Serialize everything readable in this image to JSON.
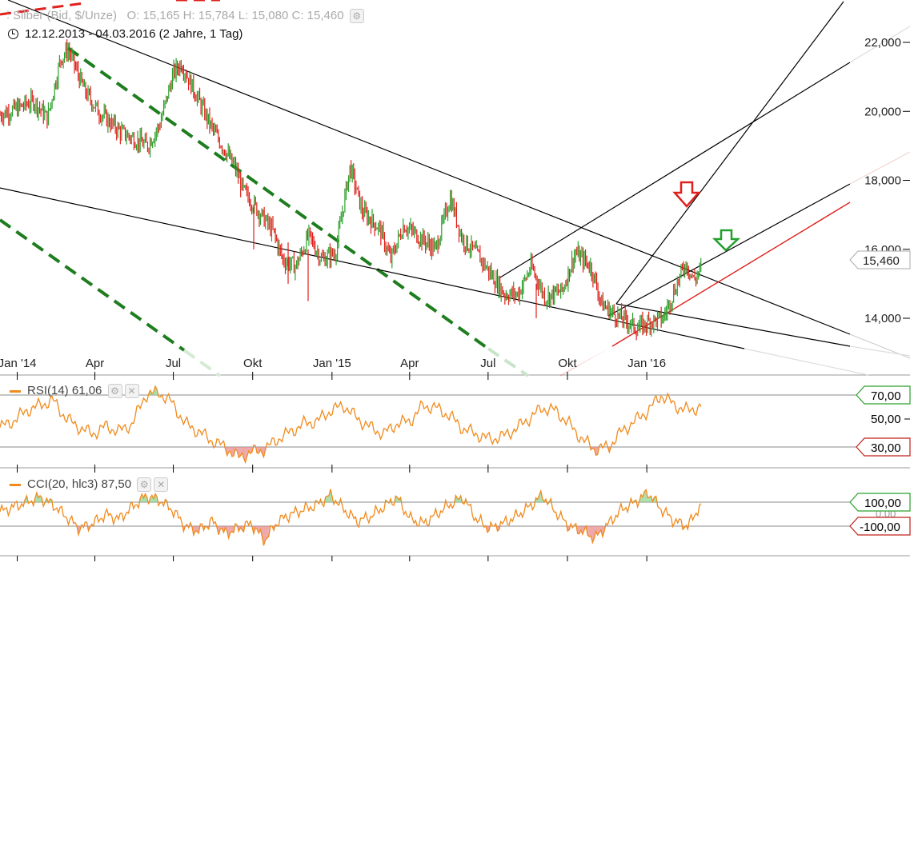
{
  "header": {
    "instrument": "Silber (Bid, $/Unze)",
    "ohlc": "O: 15,165   H: 15,784   L: 15,080   C: 15,460",
    "period": "12.12.2013 - 04.03.2016 (2 Jahre, 1 Tag)"
  },
  "indicators": {
    "rsi_title": "RSI(14)  61,06",
    "cci_title": "CCI(20, hlc3)  87,50"
  },
  "colors": {
    "up": "#2ca02c",
    "down": "#e0201b",
    "indicator": "#f08a1c",
    "trend": "#000000",
    "support": "#e0201b",
    "channel": "#1e7d1e"
  },
  "chart_data": [
    {
      "type": "candlestick",
      "title": "Silber (Bid, $/Unze)",
      "x_ticks": [
        "Jan '14",
        "Apr",
        "Jul",
        "Okt",
        "Jan '15",
        "Apr",
        "Jul",
        "Okt",
        "Jan '16"
      ],
      "y_ticks": [
        "14,000",
        "16,000",
        "18,000",
        "20,000",
        "22,000"
      ],
      "ylim": [
        13.0,
        23.0
      ],
      "last_price_label": "15,460",
      "close_path": [
        [
          "2013-12-12",
          19.9
        ],
        [
          "2014-01-02",
          20.1
        ],
        [
          "2014-01-20",
          20.3
        ],
        [
          "2014-02-05",
          19.8
        ],
        [
          "2014-02-20",
          21.5
        ],
        [
          "2014-03-01",
          21.8
        ],
        [
          "2014-03-20",
          20.6
        ],
        [
          "2014-04-05",
          20.0
        ],
        [
          "2014-05-01",
          19.4
        ],
        [
          "2014-06-01",
          19.0
        ],
        [
          "2014-06-15",
          19.6
        ],
        [
          "2014-07-01",
          21.1
        ],
        [
          "2014-07-10",
          21.4
        ],
        [
          "2014-07-25",
          20.6
        ],
        [
          "2014-08-15",
          19.5
        ],
        [
          "2014-09-10",
          18.4
        ],
        [
          "2014-09-20",
          17.7
        ],
        [
          "2014-10-05",
          17.2
        ],
        [
          "2014-10-25",
          16.5
        ],
        [
          "2014-11-05",
          15.7
        ],
        [
          "2014-11-20",
          15.5
        ],
        [
          "2014-12-05",
          16.4
        ],
        [
          "2014-12-20",
          15.7
        ],
        [
          "2015-01-05",
          15.9
        ],
        [
          "2015-01-22",
          18.4
        ],
        [
          "2015-02-05",
          17.1
        ],
        [
          "2015-02-25",
          16.6
        ],
        [
          "2015-03-10",
          15.7
        ],
        [
          "2015-03-25",
          16.7
        ],
        [
          "2015-04-10",
          16.4
        ],
        [
          "2015-05-01",
          16.0
        ],
        [
          "2015-05-18",
          17.5
        ],
        [
          "2015-06-01",
          16.3
        ],
        [
          "2015-06-20",
          15.8
        ],
        [
          "2015-07-01",
          15.4
        ],
        [
          "2015-07-20",
          14.7
        ],
        [
          "2015-08-05",
          14.7
        ],
        [
          "2015-08-20",
          15.5
        ],
        [
          "2015-09-05",
          14.6
        ],
        [
          "2015-09-25",
          14.8
        ],
        [
          "2015-10-10",
          15.9
        ],
        [
          "2015-10-28",
          15.5
        ],
        [
          "2015-11-10",
          14.4
        ],
        [
          "2015-11-25",
          14.1
        ],
        [
          "2015-12-10",
          13.9
        ],
        [
          "2015-12-20",
          13.7
        ],
        [
          "2016-01-05",
          13.9
        ],
        [
          "2016-01-20",
          14.0
        ],
        [
          "2016-02-05",
          15.0
        ],
        [
          "2016-02-15",
          15.6
        ],
        [
          "2016-02-25",
          15.1
        ],
        [
          "2016-03-04",
          15.46
        ]
      ],
      "annotations": [
        "red down arrow near 16,800 (Feb 2016)",
        "green down arrow near 15,900 (Mar 2016)"
      ]
    },
    {
      "type": "line",
      "title": "RSI(14)  61,06",
      "levels": [
        "70,00",
        "50,00",
        "30,00"
      ],
      "ylim": [
        15,
        85
      ],
      "series": [
        {
          "values": [
            45,
            50,
            58,
            62,
            66,
            52,
            45,
            40,
            46,
            42,
            48,
            70,
            72,
            64,
            48,
            42,
            35,
            30,
            22,
            26,
            28,
            36,
            42,
            48,
            50,
            58,
            62,
            52,
            45,
            40,
            48,
            50,
            62,
            60,
            54,
            44,
            40,
            36,
            38,
            44,
            52,
            60,
            58,
            48,
            36,
            28,
            30,
            42,
            50,
            58,
            70,
            62,
            58,
            61.06
          ]
        }
      ]
    },
    {
      "type": "line",
      "title": "CCI(20, hlc3)  87,50",
      "levels": [
        "100,00",
        "0,00",
        "-100,00"
      ],
      "ylim": [
        -300,
        300
      ],
      "series": [
        {
          "values": [
            20,
            60,
            100,
            140,
            80,
            -20,
            -120,
            -80,
            0,
            -40,
            60,
            150,
            120,
            40,
            -100,
            -140,
            -60,
            -160,
            -120,
            -80,
            -220,
            -60,
            0,
            40,
            80,
            160,
            40,
            -60,
            -20,
            60,
            140,
            -40,
            -80,
            0,
            80,
            140,
            -40,
            -120,
            -80,
            -20,
            60,
            160,
            20,
            -100,
            -140,
            -200,
            -80,
            40,
            100,
            180,
            40,
            -60,
            -100,
            87.5
          ]
        }
      ]
    }
  ]
}
